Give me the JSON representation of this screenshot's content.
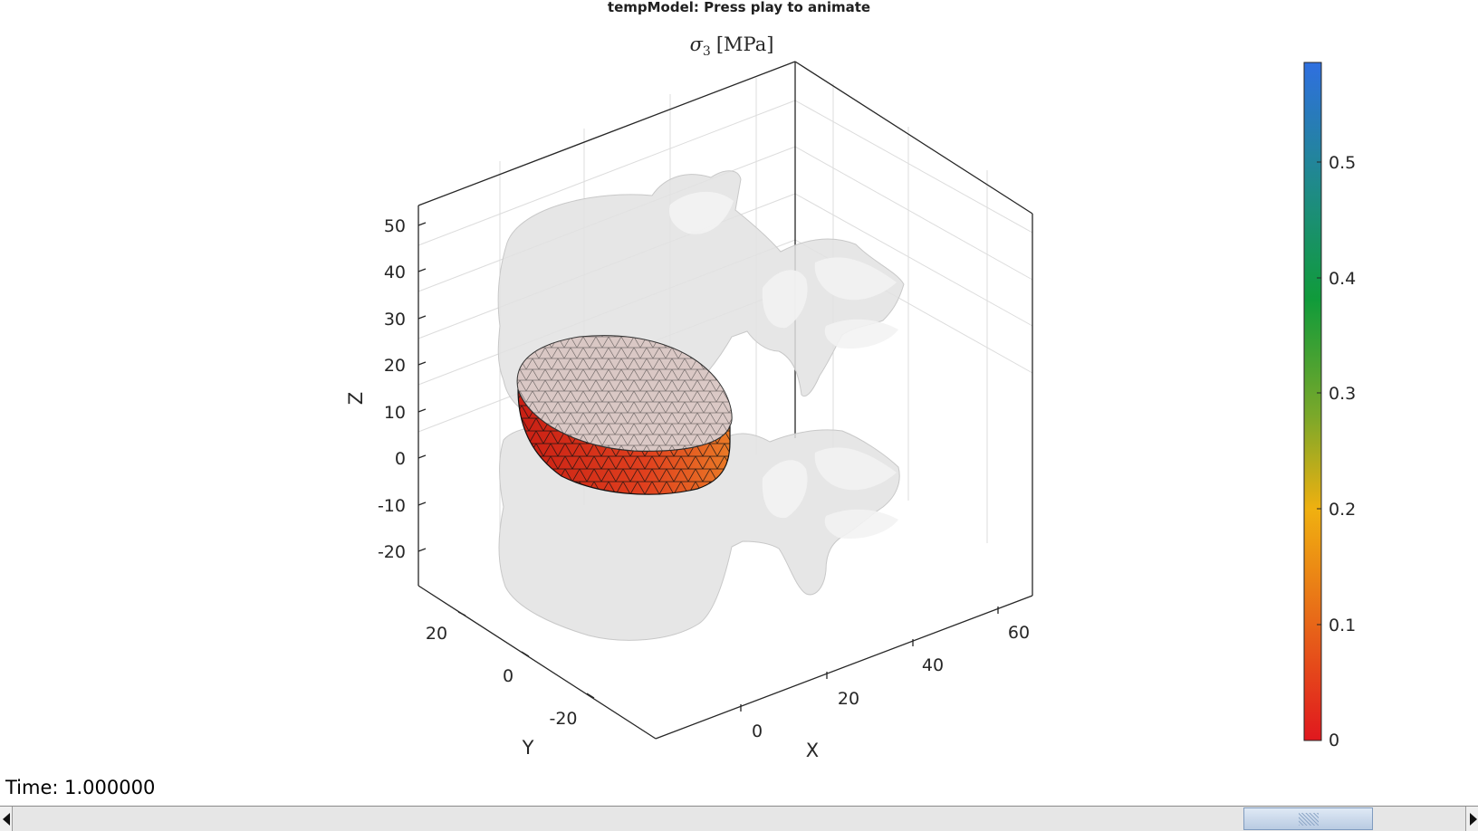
{
  "window": {
    "title": "tempModel: Press play to animate"
  },
  "plot": {
    "title_symbol": "σ",
    "title_subscript": "3",
    "title_unit": "[MPa]",
    "axes": {
      "z_label": "Z",
      "y_label": "Y",
      "x_label": "X",
      "z_ticks": [
        "50",
        "40",
        "30",
        "20",
        "10",
        "0",
        "-10",
        "-20"
      ],
      "y_ticks": [
        "20",
        "0",
        "-20"
      ],
      "x_ticks": [
        "0",
        "20",
        "40",
        "60"
      ]
    },
    "grid": true
  },
  "colorbar": {
    "ticks": [
      "0.5",
      "0.4",
      "0.3",
      "0.2",
      "0.1",
      "0"
    ],
    "colors": [
      "#2f6fe0",
      "#1f8a8a",
      "#109b3a",
      "#7aa82a",
      "#f0b010",
      "#e86a18",
      "#e0181e"
    ]
  },
  "status": {
    "time_label": "Time: 1.000000"
  },
  "scrollbar": {
    "position": 0.93
  },
  "colors": {
    "bone": "#e4e4e4",
    "disc_side": "#dc3b22",
    "disc_top": "#d8c4c0"
  },
  "icons": {
    "scroll_left": "triangle-left-icon",
    "scroll_right": "triangle-right-icon"
  }
}
